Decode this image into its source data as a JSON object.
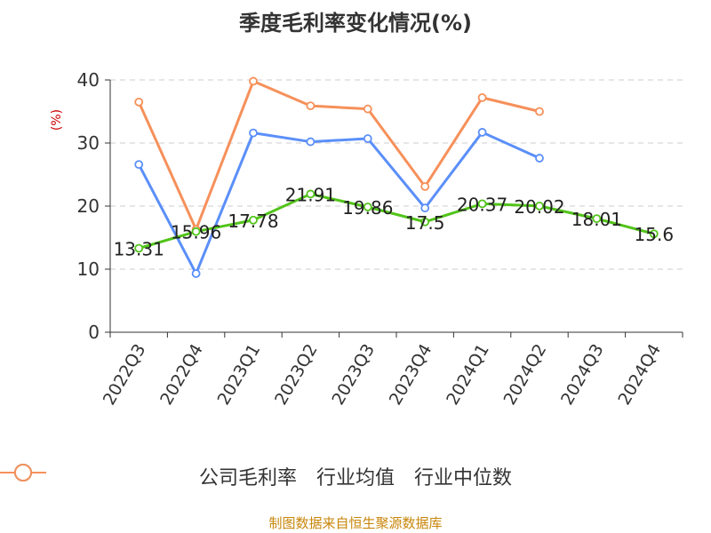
{
  "chart_data": {
    "type": "line",
    "title": "季度毛利率变化情况(%)",
    "ylabel": "(%)",
    "categories": [
      "2022Q3",
      "2022Q4",
      "2023Q1",
      "2023Q2",
      "2023Q3",
      "2023Q4",
      "2024Q1",
      "2024Q2",
      "2024Q3",
      "2024Q4"
    ],
    "ylim": [
      0,
      40
    ],
    "yticks": [
      0,
      10,
      20,
      30,
      40
    ],
    "grid": true,
    "legend_position": "bottom",
    "series": [
      {
        "name": "公司毛利率",
        "color": "#52c41a",
        "values": [
          13.31,
          15.96,
          17.78,
          21.91,
          19.86,
          17.5,
          20.37,
          20.02,
          18.01,
          15.6
        ],
        "labels": [
          "13.31",
          "15.96",
          "17.78",
          "21.91",
          "19.86",
          "17.5",
          "20.37",
          "20.02",
          "18.01",
          "15.6"
        ]
      },
      {
        "name": "行业均值",
        "color": "#5b8ff9",
        "values": [
          26.6,
          9.3,
          31.6,
          30.2,
          30.7,
          19.7,
          31.7,
          27.6,
          null,
          null
        ]
      },
      {
        "name": "行业中位数",
        "color": "#f6905a",
        "values": [
          36.5,
          16.3,
          39.8,
          35.9,
          35.4,
          23.1,
          37.2,
          35.0,
          null,
          null
        ]
      }
    ]
  },
  "footer": {
    "source": "制图数据来自恒生聚源数据库"
  },
  "colors": {
    "ylabel": "#cc0000",
    "footer": "#c8860a",
    "grid": "#cccccc",
    "axis": "#333333"
  }
}
